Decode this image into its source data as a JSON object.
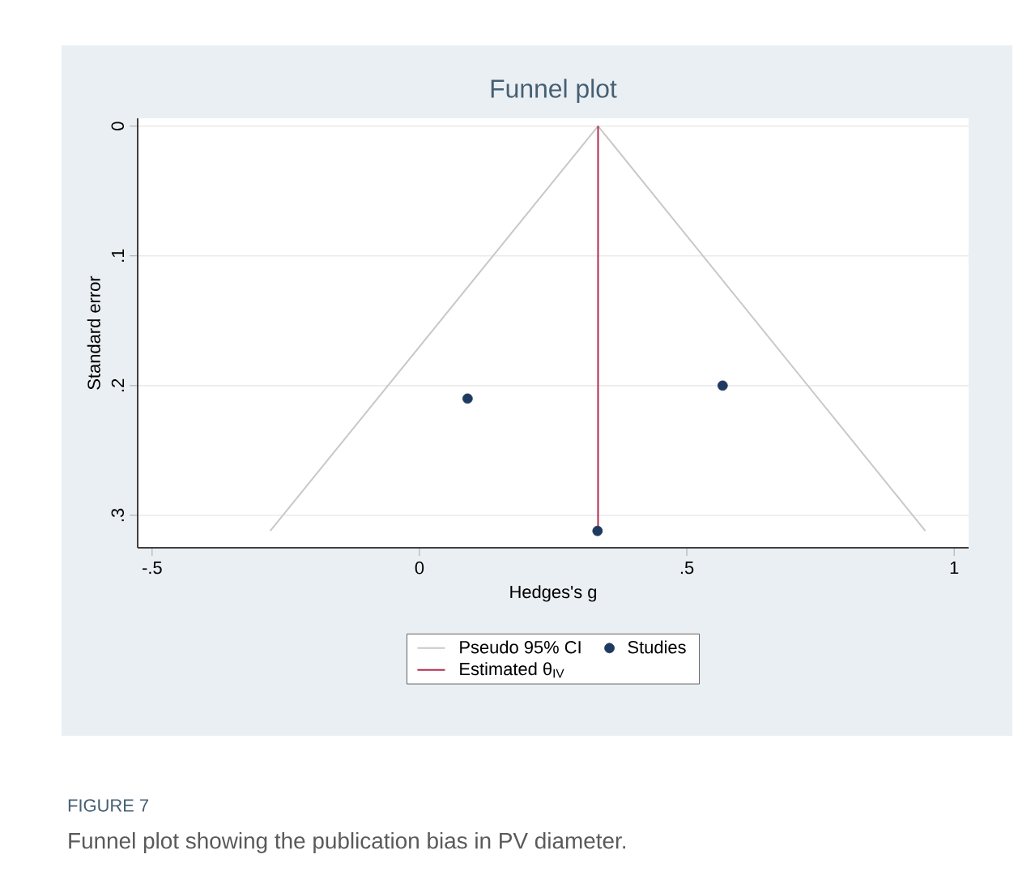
{
  "chart_data": {
    "type": "line",
    "title": "Funnel plot",
    "xlabel": "Hedges's g",
    "ylabel": "Standard error",
    "xlim": [
      -0.527,
      1.027
    ],
    "ylim": [
      0.325,
      -0.006
    ],
    "xticks": [
      {
        "value": -0.5,
        "label": "-.5"
      },
      0,
      {
        "value": 0.5,
        "label": ".5"
      },
      1
    ],
    "yticks": [
      0,
      {
        "value": 0.1,
        "label": ".1"
      },
      {
        "value": 0.2,
        "label": ".2"
      },
      {
        "value": 0.3,
        "label": ".3"
      }
    ],
    "grid": "y",
    "legend": "bottom",
    "series": [
      {
        "name": "Pseudo 95% CI",
        "color": "#c8c8c8",
        "marker": "none",
        "x": [
          -0.279,
          0.334,
          0.946
        ],
        "values": [
          0.312,
          0,
          0.312
        ]
      },
      {
        "name": "Studies",
        "type": "scatter",
        "color": "#1f3a60",
        "marker": "circle",
        "x": [
          0.09,
          0.567,
          0.333
        ],
        "values": [
          0.21,
          0.2,
          0.312
        ]
      },
      {
        "name": "Estimated θ$_{IV}$",
        "color": "#b5284f",
        "marker": "none",
        "x": [
          0.334,
          0.334
        ],
        "values": [
          0,
          0.312
        ]
      }
    ],
    "annotations": [
      "FIGURE 7",
      "Funnel plot showing the publication bias in PV diameter."
    ]
  }
}
